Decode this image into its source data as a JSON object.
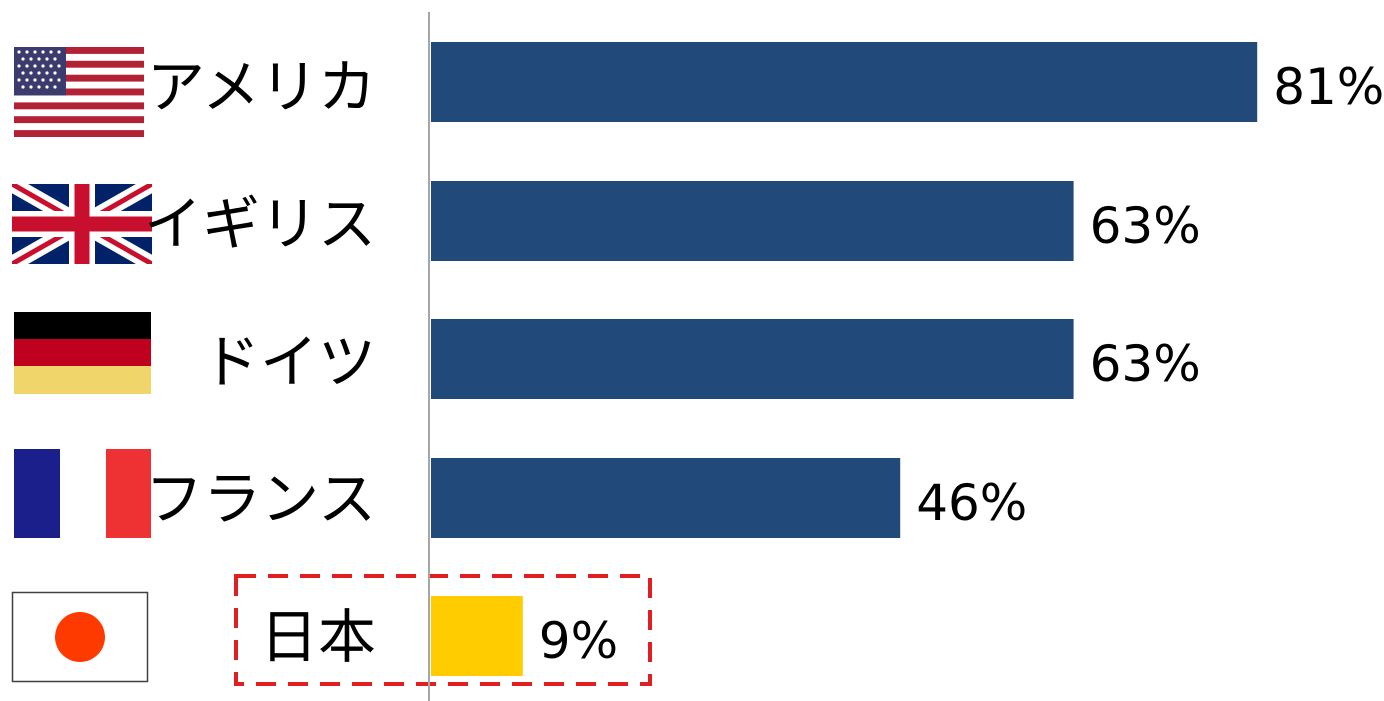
{
  "chart_data": {
    "type": "bar",
    "orientation": "horizontal",
    "categories": [
      "アメリカ",
      "イギリス",
      "ドイツ",
      "フランス",
      "日本"
    ],
    "values": [
      81,
      63,
      63,
      46,
      9
    ],
    "value_labels": [
      "81%",
      "63%",
      "63%",
      "46%",
      "9%"
    ],
    "unit": "%",
    "xlim": [
      0,
      100
    ],
    "grid": false,
    "legend": "none",
    "bar_colors": [
      "#214a7b",
      "#214a7b",
      "#214a7b",
      "#214a7b",
      "#ffcc00"
    ],
    "highlight": {
      "category": "日本",
      "style": "dashed-box",
      "color": "#e02020"
    },
    "flags": [
      "usa-flag-icon",
      "uk-flag-icon",
      "germany-flag-icon",
      "france-flag-icon",
      "japan-flag-icon"
    ]
  }
}
